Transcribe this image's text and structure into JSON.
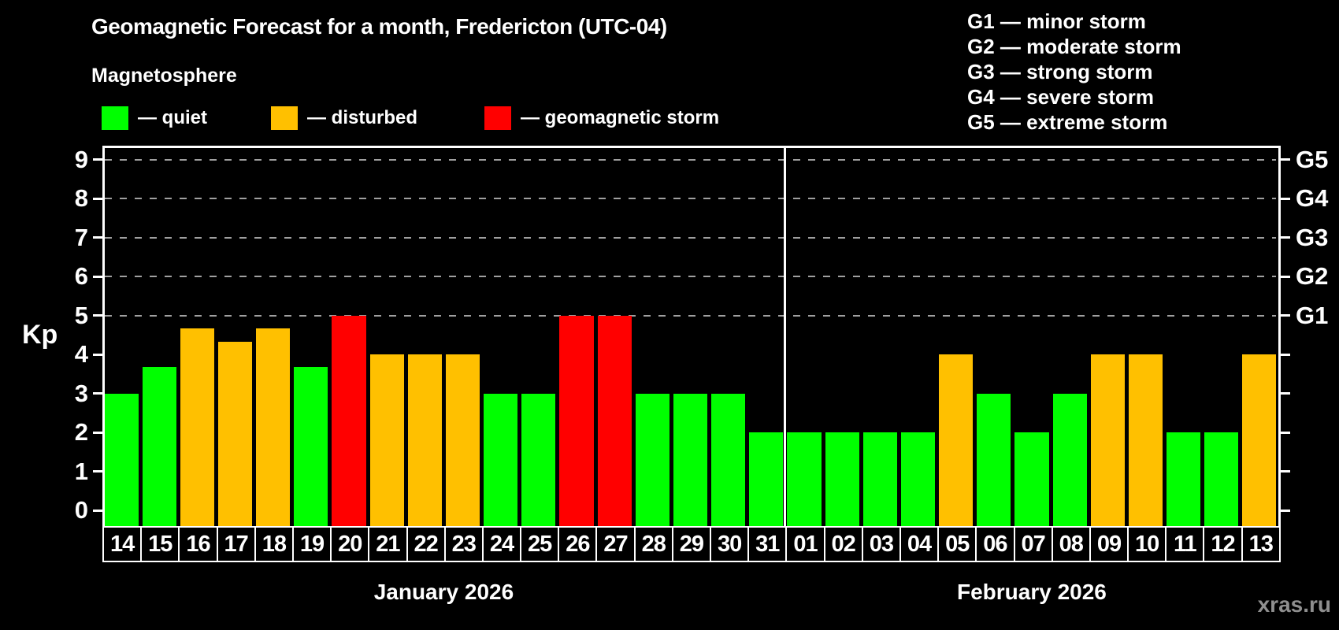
{
  "page": {
    "background": "#000000",
    "watermark": "xras.ru"
  },
  "header": {
    "title": "Geomagnetic Forecast for a month, Fredericton (UTC-04)",
    "subtitle": "Magnetosphere"
  },
  "legend": {
    "items": [
      {
        "label": "— quiet",
        "status": "quiet"
      },
      {
        "label": "— disturbed",
        "status": "disturbed"
      },
      {
        "label": "— geomagnetic storm",
        "status": "storm"
      }
    ]
  },
  "g_legend": [
    "G1 — minor storm",
    "G2 — moderate storm",
    "G3 — strong storm",
    "G4 — severe storm",
    "G5 — extreme storm"
  ],
  "chart_data": {
    "type": "bar",
    "title": "Geomagnetic Forecast for a month, Fredericton (UTC-04)",
    "xlabel": "",
    "ylabel": "Kp",
    "ylim": [
      -0.5,
      9.4
    ],
    "yticks": [
      0,
      1,
      2,
      3,
      4,
      5,
      6,
      7,
      8,
      9
    ],
    "gridlines_at": [
      5,
      6,
      7,
      8,
      9
    ],
    "grid": "dashed, horizontal, at G-storm levels only",
    "right_axis": [
      {
        "kp": 9,
        "label": "G5"
      },
      {
        "kp": 8,
        "label": "G4"
      },
      {
        "kp": 7,
        "label": "G3"
      },
      {
        "kp": 6,
        "label": "G2"
      },
      {
        "kp": 5,
        "label": "G1"
      }
    ],
    "status_colors": {
      "quiet": "#00ff00",
      "disturbed": "#ffc000",
      "storm": "#ff0000"
    },
    "months": [
      {
        "label": "January 2026",
        "days": 18
      },
      {
        "label": "February 2026",
        "days": 13
      }
    ],
    "days": [
      {
        "day": "14",
        "kp": 3.0,
        "status": "quiet"
      },
      {
        "day": "15",
        "kp": 3.67,
        "status": "quiet"
      },
      {
        "day": "16",
        "kp": 4.67,
        "status": "disturbed"
      },
      {
        "day": "17",
        "kp": 4.33,
        "status": "disturbed"
      },
      {
        "day": "18",
        "kp": 4.67,
        "status": "disturbed"
      },
      {
        "day": "19",
        "kp": 3.67,
        "status": "quiet"
      },
      {
        "day": "20",
        "kp": 5.0,
        "status": "storm"
      },
      {
        "day": "21",
        "kp": 4.0,
        "status": "disturbed"
      },
      {
        "day": "22",
        "kp": 4.0,
        "status": "disturbed"
      },
      {
        "day": "23",
        "kp": 4.0,
        "status": "disturbed"
      },
      {
        "day": "24",
        "kp": 3.0,
        "status": "quiet"
      },
      {
        "day": "25",
        "kp": 3.0,
        "status": "quiet"
      },
      {
        "day": "26",
        "kp": 5.0,
        "status": "storm"
      },
      {
        "day": "27",
        "kp": 5.0,
        "status": "storm"
      },
      {
        "day": "28",
        "kp": 3.0,
        "status": "quiet"
      },
      {
        "day": "29",
        "kp": 3.0,
        "status": "quiet"
      },
      {
        "day": "30",
        "kp": 3.0,
        "status": "quiet"
      },
      {
        "day": "31",
        "kp": 2.0,
        "status": "quiet"
      },
      {
        "day": "01",
        "kp": 2.0,
        "status": "quiet"
      },
      {
        "day": "02",
        "kp": 2.0,
        "status": "quiet"
      },
      {
        "day": "03",
        "kp": 2.0,
        "status": "quiet"
      },
      {
        "day": "04",
        "kp": 2.0,
        "status": "quiet"
      },
      {
        "day": "05",
        "kp": 4.0,
        "status": "disturbed"
      },
      {
        "day": "06",
        "kp": 3.0,
        "status": "quiet"
      },
      {
        "day": "07",
        "kp": 2.0,
        "status": "quiet"
      },
      {
        "day": "08",
        "kp": 3.0,
        "status": "quiet"
      },
      {
        "day": "09",
        "kp": 4.0,
        "status": "disturbed"
      },
      {
        "day": "10",
        "kp": 4.0,
        "status": "disturbed"
      },
      {
        "day": "11",
        "kp": 2.0,
        "status": "quiet"
      },
      {
        "day": "12",
        "kp": 2.0,
        "status": "quiet"
      },
      {
        "day": "13",
        "kp": 4.0,
        "status": "disturbed"
      }
    ]
  }
}
